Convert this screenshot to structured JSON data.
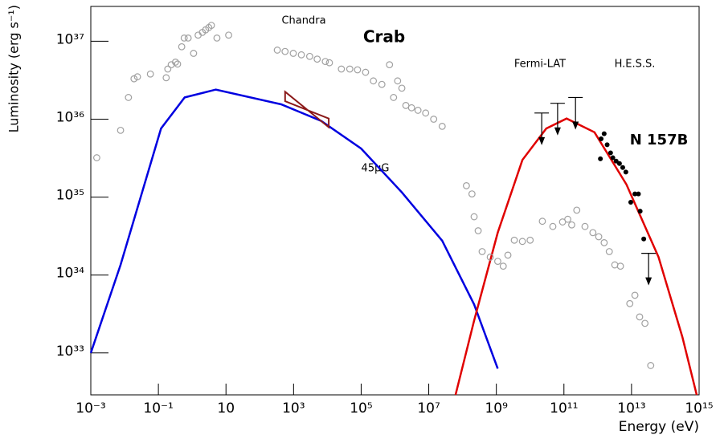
{
  "chart_data": {
    "type": "scatter",
    "xlabel": "Energy (eV)",
    "ylabel": "Luminosity (erg s⁻¹)",
    "xscale": "log",
    "yscale": "log",
    "xlim": [
      0.001,
      1000000000000000.0
    ],
    "ylim": [
      2.9e+32,
      2.8e+37
    ],
    "xticks": [
      {
        "value": 0.001,
        "label": "10⁻³"
      },
      {
        "value": 0.1,
        "label": "10⁻¹"
      },
      10,
      {
        "value": 1000,
        "label": "10³"
      },
      {
        "value": 100000,
        "label": "10⁵"
      },
      {
        "value": 10000000.0,
        "label": "10⁷"
      },
      {
        "value": 1000000000.0,
        "label": "10⁹"
      },
      {
        "value": 100000000000.0,
        "label": "10¹¹"
      },
      {
        "value": 10000000000000.0,
        "label": "10¹³"
      },
      {
        "value": 1000000000000000.0,
        "label": "10¹⁵"
      }
    ],
    "yticks": [
      {
        "value": 1e+33,
        "label": "10³³"
      },
      {
        "value": 1e+34,
        "label": "10³⁴"
      },
      {
        "value": 1e+35,
        "label": "10³⁵"
      },
      {
        "value": 1e+36,
        "label": "10³⁶"
      },
      {
        "value": 1e+37,
        "label": "10³⁷"
      }
    ],
    "annotations": [
      {
        "text": "Chandra",
        "color": "#a01818"
      },
      {
        "text": "Crab",
        "color": "#a0a0a0"
      },
      {
        "text": "Fermi-LAT",
        "color": "#000000"
      },
      {
        "text": "H.E.S.S.",
        "color": "#000000"
      },
      {
        "text": "N 157B",
        "color": "#000000"
      },
      {
        "text": "45μG",
        "color": "#0000e0"
      }
    ],
    "series": [
      {
        "style": "line",
        "color": "#0000e0",
        "x": [
          0.001,
          0.0076,
          0.12,
          0.6,
          5,
          430,
          6600,
          100000.0,
          1600000.0,
          25000000.0,
          220000000.0,
          1100000000.0
        ],
        "values": [
          1e+33,
          1.35e+34,
          7.6e+35,
          1.9e+36,
          2.4e+36,
          1.55e+36,
          9.5e+35,
          4.2e+35,
          1.15e+35,
          2.75e+34,
          4.2e+33,
          6.3e+32
        ]
      },
      {
        "style": "line",
        "color": "#e00000",
        "x": [
          62000000.0,
          220000000.0,
          1100000000.0,
          5900000000.0,
          30000000000.0,
          120000000000.0,
          800000000000.0,
          7100000000000.0,
          63000000000000.0,
          320000000000000.0,
          850000000000000.0
        ],
        "values": [
          2.9e+32,
          2.6e+33,
          3.5e+34,
          3e+35,
          7.6e+35,
          1.02e+36,
          6.8e+35,
          1.45e+35,
          1.7e+34,
          1.6e+33,
          2.9e+32
        ]
      },
      {
        "style": "polygon",
        "color": "#8b1a1a",
        "x": [
          562,
          11000,
          11000,
          562
        ],
        "values": [
          2.25e+36,
          7.9e+35,
          1.02e+36,
          1.7e+36
        ]
      },
      {
        "style": "open",
        "color": "#a0a0a0",
        "x": [
          0.0015,
          0.0076,
          0.013,
          0.019,
          0.024,
          0.058,
          0.17,
          0.19,
          0.24,
          0.32,
          0.37,
          0.49,
          0.58,
          0.76,
          1.1,
          1.5,
          2.0,
          2.5,
          3.1,
          3.7,
          5.4,
          12,
          330,
          560,
          980,
          1700,
          3000,
          5000,
          8700,
          11500,
          26000,
          46000,
          78000,
          135000,
          230000,
          410000,
          690000,
          910000,
          1200000,
          1600000,
          2100000,
          3100000,
          4800000,
          8100000,
          14000000,
          25000000,
          130000000.0,
          190000000.0,
          220000000.0,
          290000000.0,
          380000000.0,
          660000000.0,
          1100000000.0,
          1600000000.0,
          2200000000.0,
          3400000000.0,
          5900000000.0,
          10000000000.0,
          23000000000.0,
          47000000000.0,
          91000000000.0,
          130000000000.0,
          170000000000.0,
          240000000000.0,
          420000000000.0,
          720000000000.0,
          1070000000000.0,
          1550000000000.0,
          2200000000000.0,
          3200000000000.0,
          4700000000000.0,
          8900000000000.0,
          12600000000000.0,
          17400000000000.0,
          25000000000000.0,
          37000000000000.0
        ],
        "values": [
          3.2e+35,
          7.2e+35,
          1.9e+36,
          3.3e+36,
          3.5e+36,
          3.8e+36,
          3.4e+36,
          4.4e+36,
          5e+36,
          5.4e+36,
          5.1e+36,
          8.5e+36,
          1.1e+37,
          1.1e+37,
          7e+36,
          1.2e+37,
          1.3e+37,
          1.4e+37,
          1.5e+37,
          1.6e+37,
          1.1e+37,
          1.2e+37,
          7.7e+36,
          7.4e+36,
          7e+36,
          6.7e+36,
          6.4e+36,
          5.9e+36,
          5.5e+36,
          5.3e+36,
          4.4e+36,
          4.4e+36,
          4.3e+36,
          4e+36,
          3.1e+36,
          2.8e+36,
          5e+36,
          1.9e+36,
          3.1e+36,
          2.5e+36,
          1.5e+36,
          1.4e+36,
          1.3e+36,
          1.2e+36,
          1e+36,
          8.1e+35,
          1.4e+35,
          1.1e+35,
          5.6e+34,
          3.7e+34,
          2e+34,
          1.7e+34,
          1.5e+34,
          1.3e+34,
          1.8e+34,
          2.8e+34,
          2.7e+34,
          2.8e+34,
          4.9e+34,
          4.2e+34,
          4.8e+34,
          5.2e+34,
          4.4e+34,
          6.8e+34,
          4.2e+34,
          3.5e+34,
          3.1e+34,
          2.6e+34,
          2e+34,
          1.35e+34,
          1.3e+34,
          4.3e+33,
          5.5e+33,
          2.9e+33,
          2.4e+33,
          6.9e+32
        ]
      },
      {
        "style": "filled",
        "color": "#000000",
        "x": [
          1200000000000.0,
          1260000000000.0,
          1550000000000.0,
          1900000000000.0,
          2400000000000.0,
          2800000000000.0,
          3500000000000.0,
          4400000000000.0,
          5500000000000.0,
          6800000000000.0,
          9500000000000.0,
          12600000000000.0,
          16000000000000.0,
          18000000000000.0,
          23000000000000.0
        ],
        "values": [
          3.1e+35,
          5.6e+35,
          6.5e+35,
          4.7e+35,
          3.7e+35,
          3.2e+35,
          2.9e+35,
          2.7e+35,
          2.4e+35,
          2.1e+35,
          8.6e+34,
          1.1e+35,
          1.1e+35,
          6.6e+34,
          2.9e+34
        ]
      },
      {
        "style": "upper-limit",
        "color": "#000000",
        "x": [
          22000000000.0,
          65000000000.0,
          220000000000.0,
          32000000000000.0
        ],
        "values": [
          1.2e+36,
          1.6e+36,
          1.9e+36,
          1.9e+34
        ]
      }
    ]
  }
}
